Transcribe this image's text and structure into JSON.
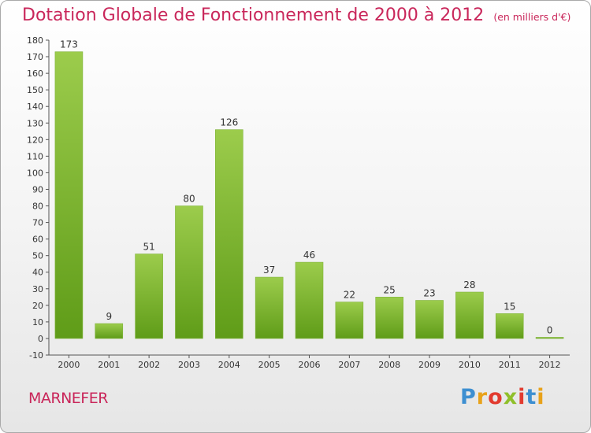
{
  "chart_data": {
    "type": "bar",
    "title": "Dotation Globale de Fonctionnement de 2000 à 2012",
    "unit": "(en milliers d'€)",
    "categories": [
      "2000",
      "2001",
      "2002",
      "2003",
      "2004",
      "2005",
      "2006",
      "2007",
      "2008",
      "2009",
      "2010",
      "2011",
      "2012"
    ],
    "values": [
      173,
      9,
      51,
      80,
      126,
      37,
      46,
      22,
      25,
      23,
      28,
      15,
      0
    ],
    "ylim": [
      -10,
      180
    ],
    "ytick_step": 10,
    "grid": false,
    "bar_color_top": "#9ccc4c",
    "bar_color_bottom": "#5f9c18"
  },
  "commune": "MARNEFER",
  "logo": {
    "text": "Proxiti",
    "letter_colors": [
      "#3d8fd1",
      "#e8a21a",
      "#e23b2f",
      "#8fbf2a",
      "#e23b2f",
      "#3d8fd1",
      "#e8a21a"
    ]
  }
}
